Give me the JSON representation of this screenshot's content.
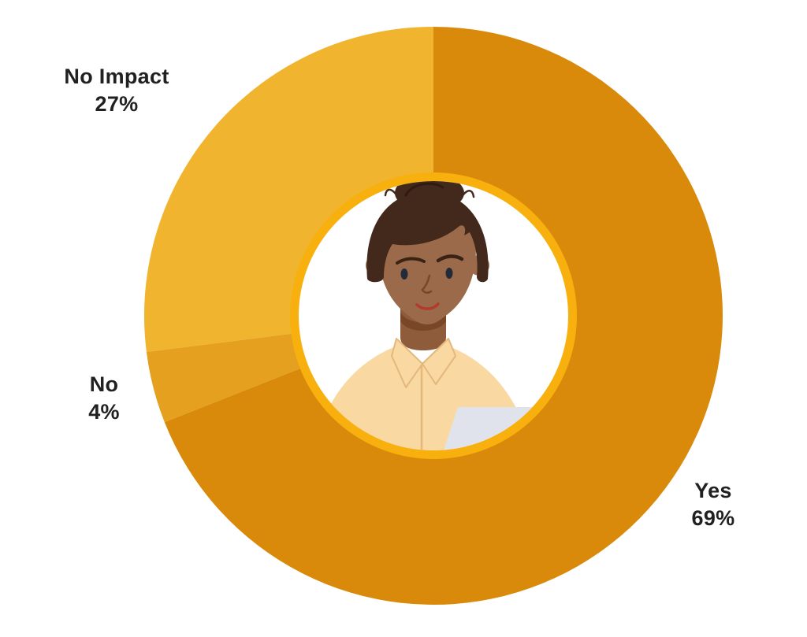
{
  "page": {
    "background": "#ffffff",
    "text_color": "#212121"
  },
  "chart_data": {
    "type": "pie",
    "variant": "donut",
    "title": "",
    "start_angle_deg": -90,
    "direction": "clockwise",
    "legend_position": "outside-callouts",
    "center_decoration": "woman-avatar-illustration",
    "center_ring_color": "#F7B00E",
    "center_fill": "#FFFFFF",
    "categories": [
      "Yes",
      "No",
      "No Impact"
    ],
    "values": [
      69,
      4,
      27
    ],
    "slices": [
      {
        "id": "yes",
        "label": "Yes",
        "value": 69,
        "display": "69%",
        "color": "#DA8A0A"
      },
      {
        "id": "no",
        "label": "No",
        "value": 4,
        "display": "4%",
        "color": "#E4A01E"
      },
      {
        "id": "no-impact",
        "label": "No Impact",
        "value": 27,
        "display": "27%",
        "color": "#F0B42E"
      }
    ]
  },
  "callouts": {
    "no_impact": {
      "label": "No Impact",
      "value": "27%"
    },
    "no": {
      "label": "No",
      "value": "4%"
    },
    "yes": {
      "label": "Yes",
      "value": "69%"
    }
  },
  "avatar": {
    "description": "illustrated woman with dark skin and hair bun wearing cream collared shirt holding paper",
    "colors": {
      "skin": "#9A6A4A",
      "skin_shadow": "#7A4628",
      "neck": "#8E5B3B",
      "hair": "#43291B",
      "hair_detail": "#2F1B10",
      "brow": "#3A2315",
      "eye": "#222B38",
      "mouth": "#B23B2C",
      "nose_line": "#7B4527",
      "shirt": "#FAD8A1",
      "shirt_line": "#E4B87D",
      "shirt_crease": "#ECCB96",
      "paper": "#E1E3EC"
    }
  }
}
